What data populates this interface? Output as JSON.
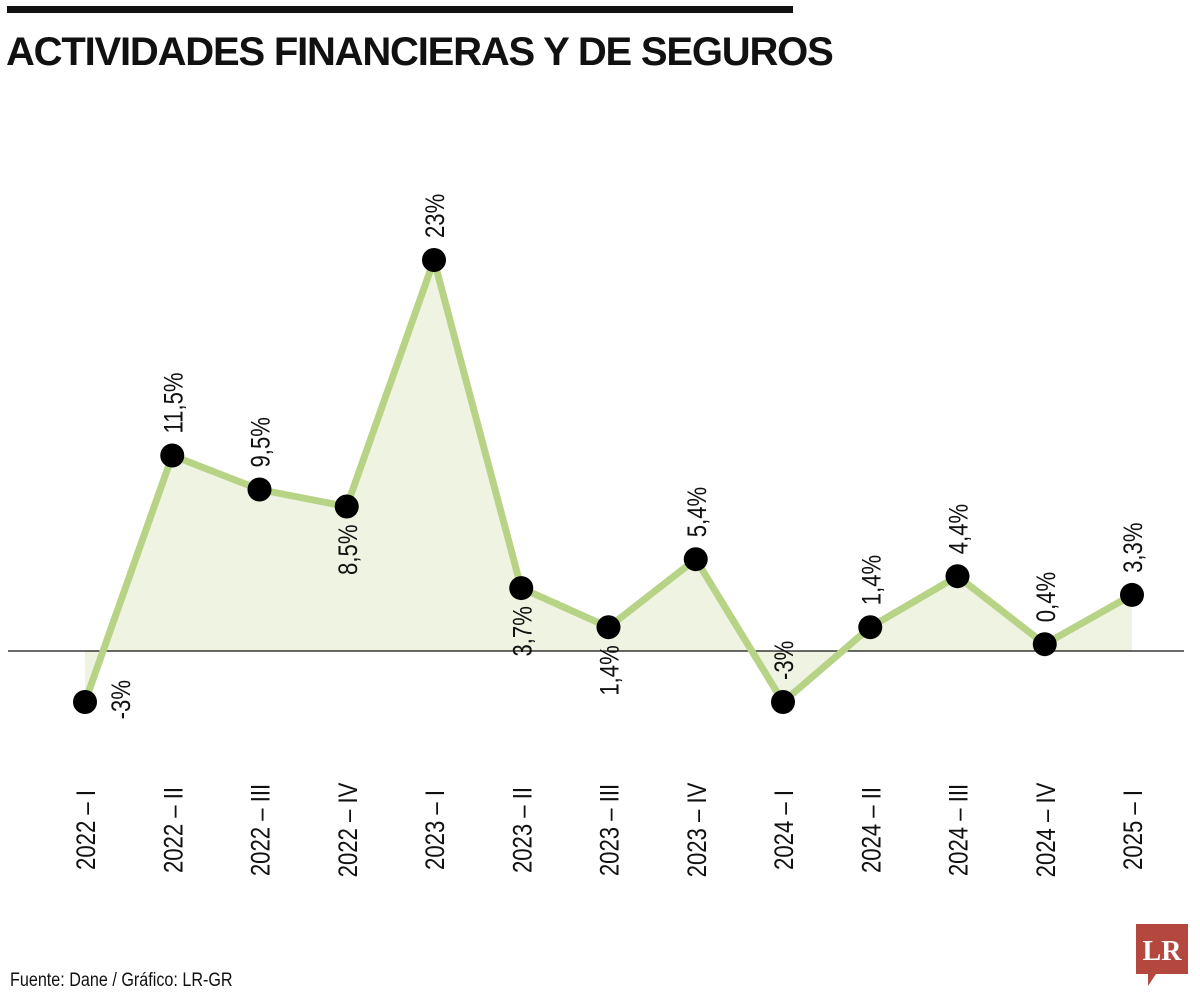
{
  "title": "ACTIVIDADES FINANCIERAS Y DE SEGUROS",
  "source": "Fuente: Dane / Gráfico: LR-GR",
  "logo": {
    "text": "LR"
  },
  "colors": {
    "line": "#b7d486",
    "area": "#eef4e1",
    "marker": "#000000",
    "text": "#111111",
    "logo": "#b5483e"
  },
  "chart_data": {
    "type": "area",
    "title": "ACTIVIDADES FINANCIERAS Y DE SEGUROS",
    "xlabel": "",
    "ylabel": "",
    "categories": [
      "2022 – I",
      "2022 – II",
      "2022 – III",
      "2022 – IV",
      "2023 – I",
      "2023 – II",
      "2023 – III",
      "2023 – IV",
      "2024 – I",
      "2024 – II",
      "2024 – III",
      "2024 – IV",
      "2025 – I"
    ],
    "values": [
      -3,
      11.5,
      9.5,
      8.5,
      23,
      3.7,
      1.4,
      5.4,
      -3,
      1.4,
      4.4,
      0.4,
      3.3
    ],
    "labels": [
      "-3%",
      "11,5%",
      "9,5%",
      "8,5%",
      "23%",
      "3,7%",
      "1,4%",
      "5,4%",
      "-3%",
      "1,4%",
      "4,4%",
      "0,4%",
      "3,3%"
    ],
    "label_positions": [
      "below",
      "above",
      "above",
      "below",
      "above",
      "below",
      "below",
      "above",
      "above",
      "above",
      "above",
      "above",
      "above"
    ],
    "ylim": [
      -3,
      23
    ],
    "grid": false,
    "legend": "none"
  }
}
